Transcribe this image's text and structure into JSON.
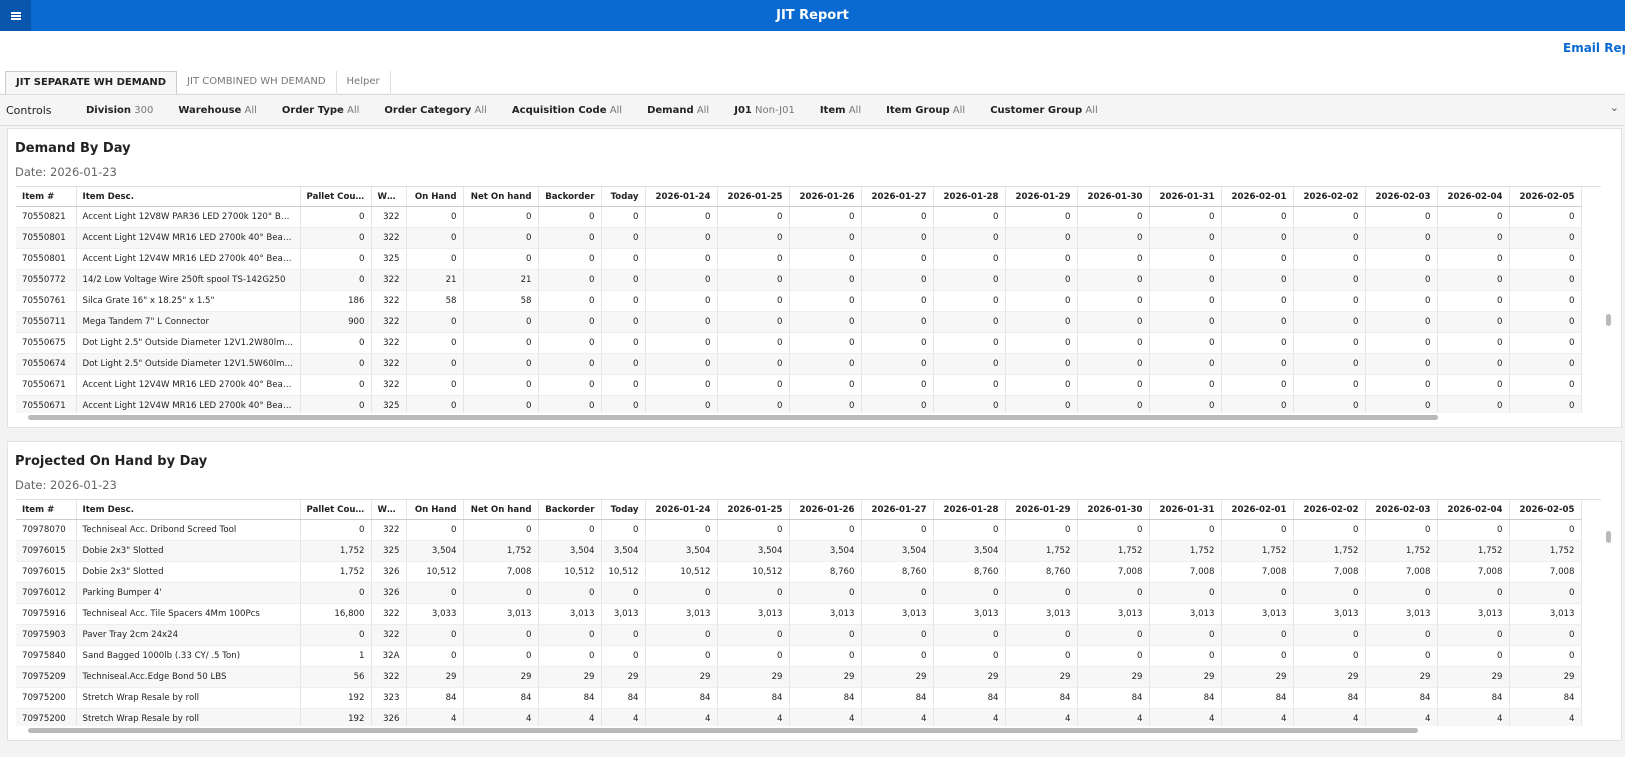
{
  "header": {
    "title": "JIT Report",
    "email": "Email Report"
  },
  "tabs": [
    "JIT SEPARATE WH DEMAND",
    "JIT COMBINED WH DEMAND",
    "Helper"
  ],
  "controls": {
    "title": "Controls",
    "filters": [
      {
        "label": "Division",
        "value": "300"
      },
      {
        "label": "Warehouse",
        "value": "All"
      },
      {
        "label": "Order Type",
        "value": "All"
      },
      {
        "label": "Order Category",
        "value": "All"
      },
      {
        "label": "Acquisition Code",
        "value": "All"
      },
      {
        "label": "Demand",
        "value": "All"
      },
      {
        "label": "J01",
        "value": "Non-J01"
      },
      {
        "label": "Item",
        "value": "All"
      },
      {
        "label": "Item Group",
        "value": "All"
      },
      {
        "label": "Customer Group",
        "value": "All"
      }
    ]
  },
  "panels": [
    {
      "title": "Demand By Day",
      "date": "Date: 2026-01-23",
      "columns": [
        "Item #",
        "Item Desc.",
        "Pallet Count",
        "Whs.",
        "On Hand",
        "Net On hand",
        "Backorder",
        "Today",
        "2026-01-24",
        "2026-01-25",
        "2026-01-26",
        "2026-01-27",
        "2026-01-28",
        "2026-01-29",
        "2026-01-30",
        "2026-01-31",
        "2026-02-01",
        "2026-02-02",
        "2026-02-03",
        "2026-02-04",
        "2026-02-05"
      ],
      "rows": [
        [
          "70550821",
          "Accent Light 12V8W PAR36 LED 2700k 120° Beam wit...",
          "0",
          "322",
          "0",
          "0",
          "0",
          "0",
          "0",
          "0",
          "0",
          "0",
          "0",
          "0",
          "0",
          "0",
          "0",
          "0",
          "0",
          "0",
          "0"
        ],
        [
          "70550801",
          "Accent Light 12V4W MR16 LED 2700k 40° Beam with ...",
          "0",
          "322",
          "0",
          "0",
          "0",
          "0",
          "0",
          "0",
          "0",
          "0",
          "0",
          "0",
          "0",
          "0",
          "0",
          "0",
          "0",
          "0",
          "0"
        ],
        [
          "70550801",
          "Accent Light 12V4W MR16 LED 2700k 40° Beam with ...",
          "0",
          "325",
          "0",
          "0",
          "0",
          "0",
          "0",
          "0",
          "0",
          "0",
          "0",
          "0",
          "0",
          "0",
          "0",
          "0",
          "0",
          "0",
          "0"
        ],
        [
          "70550772",
          "14/2 Low Voltage Wire 250ft spool TS-142G250",
          "0",
          "322",
          "21",
          "21",
          "0",
          "0",
          "0",
          "0",
          "0",
          "0",
          "0",
          "0",
          "0",
          "0",
          "0",
          "0",
          "0",
          "0",
          "0"
        ],
        [
          "70550761",
          "Silca Grate 16\" x 18.25\" x 1.5\"",
          "186",
          "322",
          "58",
          "58",
          "0",
          "0",
          "0",
          "0",
          "0",
          "0",
          "0",
          "0",
          "0",
          "0",
          "0",
          "0",
          "0",
          "0",
          "0"
        ],
        [
          "70550711",
          "Mega Tandem 7\" L Connector",
          "900",
          "322",
          "0",
          "0",
          "0",
          "0",
          "0",
          "0",
          "0",
          "0",
          "0",
          "0",
          "0",
          "0",
          "0",
          "0",
          "0",
          "0",
          "0"
        ],
        [
          "70550675",
          "Dot Light 2.5\" Outside Diameter 12V1.2W80lm 2700k...",
          "0",
          "322",
          "0",
          "0",
          "0",
          "0",
          "0",
          "0",
          "0",
          "0",
          "0",
          "0",
          "0",
          "0",
          "0",
          "0",
          "0",
          "0",
          "0"
        ],
        [
          "70550674",
          "Dot Light 2.5\" Outside Diameter 12V1.5W60lm Color ...",
          "0",
          "322",
          "0",
          "0",
          "0",
          "0",
          "0",
          "0",
          "0",
          "0",
          "0",
          "0",
          "0",
          "0",
          "0",
          "0",
          "0",
          "0",
          "0"
        ],
        [
          "70550671",
          "Accent Light 12V4W MR16 LED 2700k 40° Beam with ...",
          "0",
          "322",
          "0",
          "0",
          "0",
          "0",
          "0",
          "0",
          "0",
          "0",
          "0",
          "0",
          "0",
          "0",
          "0",
          "0",
          "0",
          "0",
          "0"
        ],
        [
          "70550671",
          "Accent Light 12V4W MR16 LED 2700k 40° Beam with ...",
          "0",
          "325",
          "0",
          "0",
          "0",
          "0",
          "0",
          "0",
          "0",
          "0",
          "0",
          "0",
          "0",
          "0",
          "0",
          "0",
          "0",
          "0",
          "0"
        ]
      ]
    },
    {
      "title": "Projected On Hand by Day",
      "date": "Date: 2026-01-23",
      "columns": [
        "Item #",
        "Item Desc.",
        "Pallet Count",
        "Whs.",
        "On Hand",
        "Net On hand",
        "Backorder",
        "Today",
        "2026-01-24",
        "2026-01-25",
        "2026-01-26",
        "2026-01-27",
        "2026-01-28",
        "2026-01-29",
        "2026-01-30",
        "2026-01-31",
        "2026-02-01",
        "2026-02-02",
        "2026-02-03",
        "2026-02-04",
        "2026-02-05"
      ],
      "rows": [
        [
          "70978070",
          "Techniseal Acc. Dribond Screed Tool",
          "0",
          "322",
          "0",
          "0",
          "0",
          "0",
          "0",
          "0",
          "0",
          "0",
          "0",
          "0",
          "0",
          "0",
          "0",
          "0",
          "0",
          "0",
          "0"
        ],
        [
          "70976015",
          "Dobie 2x3\" Slotted",
          "1,752",
          "325",
          "3,504",
          "1,752",
          "3,504",
          "3,504",
          "3,504",
          "3,504",
          "3,504",
          "3,504",
          "3,504",
          "1,752",
          "1,752",
          "1,752",
          "1,752",
          "1,752",
          "1,752",
          "1,752",
          "1,752"
        ],
        [
          "70976015",
          "Dobie 2x3\" Slotted",
          "1,752",
          "326",
          "10,512",
          "7,008",
          "10,512",
          "10,512",
          "10,512",
          "10,512",
          "8,760",
          "8,760",
          "8,760",
          "8,760",
          "7,008",
          "7,008",
          "7,008",
          "7,008",
          "7,008",
          "7,008",
          "7,008"
        ],
        [
          "70976012",
          "Parking Bumper 4'",
          "0",
          "326",
          "0",
          "0",
          "0",
          "0",
          "0",
          "0",
          "0",
          "0",
          "0",
          "0",
          "0",
          "0",
          "0",
          "0",
          "0",
          "0",
          "0"
        ],
        [
          "70975916",
          "Techniseal  Acc. Tile Spacers 4Mm 100Pcs",
          "16,800",
          "322",
          "3,033",
          "3,013",
          "3,013",
          "3,013",
          "3,013",
          "3,013",
          "3,013",
          "3,013",
          "3,013",
          "3,013",
          "3,013",
          "3,013",
          "3,013",
          "3,013",
          "3,013",
          "3,013",
          "3,013"
        ],
        [
          "70975903",
          "Paver Tray 2cm 24x24",
          "0",
          "322",
          "0",
          "0",
          "0",
          "0",
          "0",
          "0",
          "0",
          "0",
          "0",
          "0",
          "0",
          "0",
          "0",
          "0",
          "0",
          "0",
          "0"
        ],
        [
          "70975840",
          "Sand Bagged 1000lb (.33 CY/ .5 Ton)",
          "1",
          "32A",
          "0",
          "0",
          "0",
          "0",
          "0",
          "0",
          "0",
          "0",
          "0",
          "0",
          "0",
          "0",
          "0",
          "0",
          "0",
          "0",
          "0"
        ],
        [
          "70975209",
          "Techniseal.Acc.Edge Bond 50 LBS",
          "56",
          "322",
          "29",
          "29",
          "29",
          "29",
          "29",
          "29",
          "29",
          "29",
          "29",
          "29",
          "29",
          "29",
          "29",
          "29",
          "29",
          "29",
          "29"
        ],
        [
          "70975200",
          "Stretch Wrap Resale by roll",
          "192",
          "323",
          "84",
          "84",
          "84",
          "84",
          "84",
          "84",
          "84",
          "84",
          "84",
          "84",
          "84",
          "84",
          "84",
          "84",
          "84",
          "84",
          "84"
        ],
        [
          "70975200",
          "Stretch Wrap Resale by roll",
          "192",
          "326",
          "4",
          "4",
          "4",
          "4",
          "4",
          "4",
          "4",
          "4",
          "4",
          "4",
          "4",
          "4",
          "4",
          "4",
          "4",
          "4",
          "4"
        ]
      ]
    }
  ]
}
